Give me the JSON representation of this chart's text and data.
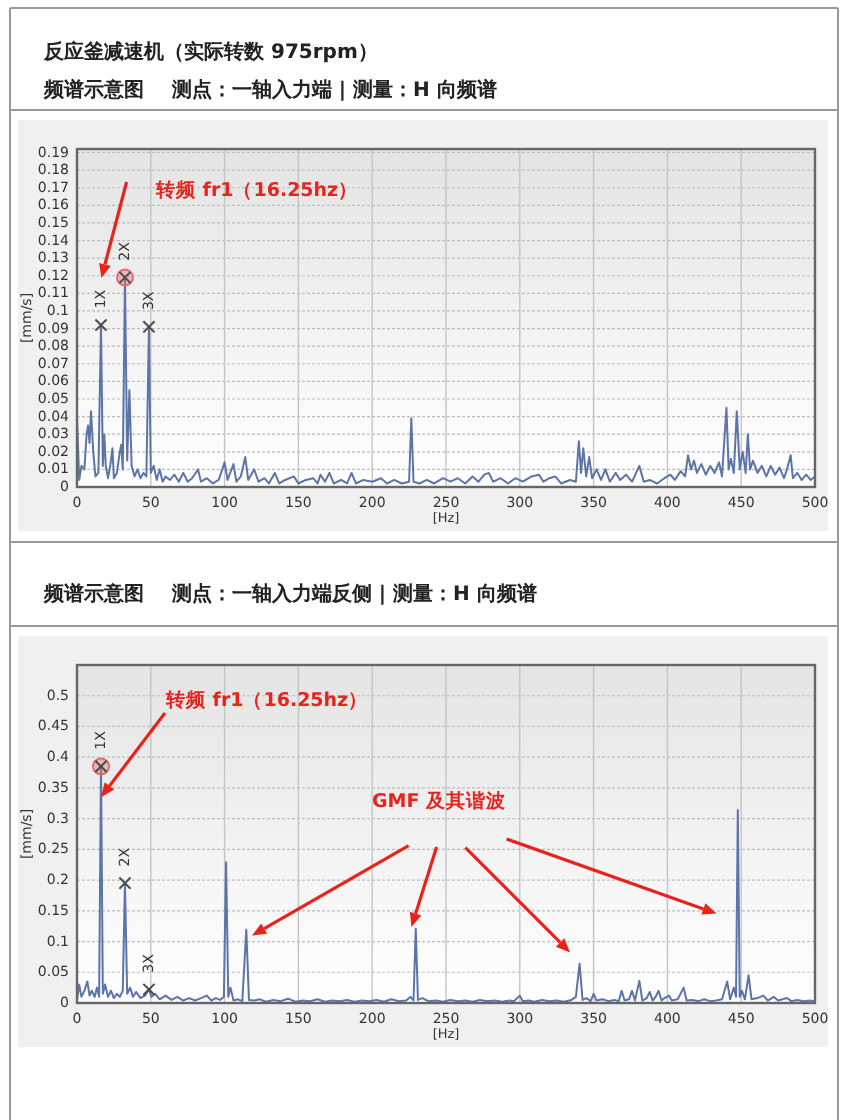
{
  "chart_data": [
    {
      "type": "line",
      "title": "反应釜减速机（实际转数 975rpm）",
      "subtitle": "频谱示意图    测点：一轴入力端 | 测量：H 向频谱",
      "xlabel": "[Hz]",
      "ylabel": "[mm/s]",
      "xlim": [
        0,
        500
      ],
      "xticks": [
        0,
        50,
        100,
        150,
        200,
        250,
        300,
        350,
        400,
        450,
        500
      ],
      "ylim": [
        0,
        0.192
      ],
      "yticks": [
        0,
        0.01,
        0.02,
        0.03,
        0.04,
        0.05,
        0.06,
        0.07,
        0.08,
        0.09,
        0.1,
        0.11,
        0.12,
        0.13,
        0.14,
        0.15,
        0.16,
        0.17,
        0.18,
        0.19
      ],
      "grid": true,
      "series": [
        {
          "color": "#5d74a8",
          "x": [
            0,
            1.5,
            3,
            5,
            6.5,
            7.5,
            8.5,
            9.5,
            11,
            12.5,
            14.5,
            16.25,
            17.5,
            18.5,
            19.5,
            21,
            22.5,
            24,
            25,
            27,
            29,
            30,
            31,
            32.5,
            34,
            35.5,
            37,
            39,
            41,
            43,
            45,
            47,
            48.75,
            50,
            52,
            54,
            56,
            58,
            60,
            63,
            66,
            69,
            72,
            75,
            78,
            82,
            84,
            88,
            92,
            96,
            100,
            102,
            106,
            108,
            111,
            114,
            116,
            120,
            123,
            127,
            130,
            134,
            137,
            141,
            147,
            150,
            155,
            160,
            163,
            165,
            168,
            171,
            174,
            179,
            183,
            186,
            189,
            194,
            200,
            206,
            210,
            215,
            220,
            225,
            226.5,
            228,
            232,
            237,
            242,
            248,
            253,
            258,
            263,
            268,
            272,
            276,
            279,
            282,
            287,
            292,
            297,
            302,
            308,
            313,
            316,
            320,
            324,
            328,
            334,
            338,
            340,
            341.5,
            343,
            345,
            347,
            349,
            352,
            355,
            358,
            361,
            365,
            368,
            372,
            376,
            381,
            384,
            388,
            393,
            398,
            402,
            405,
            409,
            412,
            414,
            416,
            418,
            420,
            423,
            426,
            429,
            432,
            435,
            437,
            440,
            441.5,
            443,
            445,
            447,
            449,
            451,
            453,
            454.5,
            456,
            458,
            461,
            464,
            467,
            470,
            473,
            476,
            479,
            481,
            483.5,
            485,
            488,
            491,
            494,
            497,
            500
          ],
          "values": [
            0.04,
            0.004,
            0.012,
            0.01,
            0.03,
            0.035,
            0.025,
            0.043,
            0.02,
            0.006,
            0.008,
            0.092,
            0.012,
            0.03,
            0.012,
            0.005,
            0.012,
            0.022,
            0.005,
            0.008,
            0.02,
            0.024,
            0.01,
            0.119,
            0.015,
            0.055,
            0.012,
            0.006,
            0.01,
            0.005,
            0.008,
            0.006,
            0.091,
            0.008,
            0.012,
            0.004,
            0.01,
            0.003,
            0.006,
            0.004,
            0.007,
            0.003,
            0.008,
            0.003,
            0.005,
            0.01,
            0.003,
            0.005,
            0.002,
            0.004,
            0.014,
            0.004,
            0.013,
            0.003,
            0.006,
            0.017,
            0.004,
            0.01,
            0.003,
            0.005,
            0.002,
            0.008,
            0.002,
            0.004,
            0.006,
            0.002,
            0.004,
            0.005,
            0.002,
            0.007,
            0.003,
            0.008,
            0.002,
            0.004,
            0.002,
            0.008,
            0.002,
            0.004,
            0.003,
            0.005,
            0.002,
            0.004,
            0.002,
            0.003,
            0.039,
            0.003,
            0.002,
            0.004,
            0.002,
            0.005,
            0.003,
            0.005,
            0.002,
            0.006,
            0.003,
            0.007,
            0.008,
            0.003,
            0.005,
            0.002,
            0.005,
            0.003,
            0.006,
            0.007,
            0.003,
            0.005,
            0.006,
            0.002,
            0.004,
            0.003,
            0.026,
            0.008,
            0.022,
            0.006,
            0.017,
            0.005,
            0.01,
            0.004,
            0.01,
            0.003,
            0.008,
            0.004,
            0.007,
            0.003,
            0.012,
            0.003,
            0.004,
            0.002,
            0.005,
            0.007,
            0.004,
            0.009,
            0.006,
            0.018,
            0.01,
            0.015,
            0.008,
            0.013,
            0.007,
            0.012,
            0.008,
            0.014,
            0.006,
            0.045,
            0.01,
            0.016,
            0.008,
            0.043,
            0.01,
            0.02,
            0.008,
            0.03,
            0.01,
            0.015,
            0.008,
            0.012,
            0.006,
            0.012,
            0.007,
            0.011,
            0.005,
            0.01,
            0.018,
            0.005,
            0.008,
            0.004,
            0.007,
            0.004,
            0.006
          ]
        },
        {
          "type": "scatter",
          "marker": "circle",
          "color": "#e36a6a",
          "x": [
            32.5
          ],
          "values": [
            0.119
          ]
        },
        {
          "type": "scatter",
          "marker": "cross",
          "color": "#4a4a4a",
          "x": [
            16.25,
            32.5,
            48.75
          ],
          "values": [
            0.092,
            0.119,
            0.091
          ]
        }
      ],
      "annotations": [
        "转频 fr1（16.25hz）",
        {
          "text": "1X",
          "x": 16.25,
          "y": 0.092
        },
        {
          "text": "2X",
          "x": 32.5,
          "y": 0.119
        },
        {
          "text": "3X",
          "x": 48.75,
          "y": 0.091
        }
      ]
    },
    {
      "type": "line",
      "title": "频谱示意图    测点：一轴入力端反侧 | 测量：H 向频谱",
      "xlabel": "[Hz]",
      "ylabel": "[mm/s]",
      "xlim": [
        0,
        500
      ],
      "xticks": [
        0,
        50,
        100,
        150,
        200,
        250,
        300,
        350,
        400,
        450,
        500
      ],
      "ylim": [
        0,
        0.55
      ],
      "yticks": [
        0,
        0.05,
        0.1,
        0.15,
        0.2,
        0.25,
        0.3,
        0.35,
        0.4,
        0.45,
        0.5
      ],
      "grid": true,
      "series": [
        {
          "color": "#5d74a8",
          "x": [
            0,
            1.5,
            3,
            5,
            7,
            8.5,
            10,
            12,
            13.5,
            15,
            16.25,
            17.5,
            19,
            21,
            23,
            25,
            27,
            29,
            31,
            32.5,
            34,
            36,
            38,
            40,
            43,
            46,
            48.75,
            50.5,
            53,
            56,
            60,
            64,
            68,
            72,
            76,
            80,
            84,
            88,
            91,
            94,
            97,
            99.5,
            101,
            102.5,
            104,
            106,
            109,
            112,
            114.7,
            116.5,
            120,
            124,
            128,
            133,
            138,
            143,
            148,
            153,
            158,
            163,
            168,
            173,
            178,
            183,
            188,
            193,
            198,
            203,
            208,
            213,
            218,
            223,
            226,
            228,
            229.5,
            231,
            234,
            238,
            243,
            248,
            253,
            258,
            263,
            268,
            273,
            278,
            283,
            288,
            293,
            296,
            300,
            302,
            306,
            310,
            315,
            320,
            325,
            330,
            335,
            338,
            340.5,
            342.5,
            345,
            348,
            350,
            352,
            356,
            360,
            364,
            367,
            369,
            371,
            374,
            376,
            378,
            381,
            383,
            386,
            388,
            390,
            392,
            394,
            396,
            398,
            401,
            403,
            407,
            411,
            413,
            417,
            421,
            425,
            429,
            433,
            437,
            440.5,
            442.5,
            445,
            446.5,
            447.7,
            449,
            450.5,
            452.5,
            455,
            457,
            461,
            465,
            468,
            472,
            475,
            478,
            481,
            484,
            488,
            492,
            497,
            500
          ],
          "values": [
            0.005,
            0.03,
            0.01,
            0.02,
            0.035,
            0.012,
            0.02,
            0.01,
            0.025,
            0.01,
            0.385,
            0.015,
            0.03,
            0.01,
            0.02,
            0.008,
            0.015,
            0.01,
            0.02,
            0.195,
            0.015,
            0.025,
            0.01,
            0.018,
            0.008,
            0.012,
            0.022,
            0.01,
            0.015,
            0.006,
            0.012,
            0.005,
            0.01,
            0.004,
            0.008,
            0.004,
            0.008,
            0.012,
            0.004,
            0.008,
            0.005,
            0.01,
            0.229,
            0.01,
            0.025,
            0.004,
            0.006,
            0.003,
            0.119,
            0.005,
            0.004,
            0.006,
            0.002,
            0.005,
            0.003,
            0.007,
            0.002,
            0.004,
            0.003,
            0.006,
            0.002,
            0.004,
            0.003,
            0.005,
            0.002,
            0.004,
            0.003,
            0.005,
            0.002,
            0.006,
            0.003,
            0.004,
            0.01,
            0.004,
            0.121,
            0.005,
            0.008,
            0.003,
            0.004,
            0.002,
            0.005,
            0.003,
            0.004,
            0.002,
            0.005,
            0.003,
            0.004,
            0.002,
            0.004,
            0.003,
            0.012,
            0.003,
            0.004,
            0.002,
            0.005,
            0.003,
            0.004,
            0.002,
            0.005,
            0.01,
            0.064,
            0.005,
            0.008,
            0.003,
            0.015,
            0.004,
            0.006,
            0.003,
            0.005,
            0.003,
            0.02,
            0.004,
            0.006,
            0.02,
            0.004,
            0.036,
            0.004,
            0.008,
            0.018,
            0.004,
            0.01,
            0.02,
            0.004,
            0.008,
            0.012,
            0.004,
            0.006,
            0.025,
            0.004,
            0.005,
            0.003,
            0.006,
            0.003,
            0.004,
            0.006,
            0.035,
            0.006,
            0.025,
            0.01,
            0.314,
            0.01,
            0.02,
            0.006,
            0.045,
            0.006,
            0.008,
            0.012,
            0.004,
            0.01,
            0.004,
            0.006,
            0.008,
            0.003,
            0.005,
            0.003,
            0.004,
            0.002
          ]
        },
        {
          "type": "scatter",
          "marker": "circle",
          "color": "#e36a6a",
          "x": [
            16.25
          ],
          "values": [
            0.385
          ]
        },
        {
          "type": "scatter",
          "marker": "cross",
          "color": "#4a4a4a",
          "x": [
            16.25,
            32.5,
            48.75
          ],
          "values": [
            0.385,
            0.195,
            0.022
          ]
        }
      ],
      "annotations": [
        {
          "text": "转频 fr1（16.25hz）",
          "x": 16.25,
          "y": 0.335
        },
        "GMF 及其谐波",
        {
          "text": "1X",
          "x": 16.25,
          "y": 0.385
        },
        {
          "text": "2X",
          "x": 32.5,
          "y": 0.195
        },
        {
          "text": "3X",
          "x": 48.75,
          "y": 0.022
        }
      ]
    }
  ]
}
